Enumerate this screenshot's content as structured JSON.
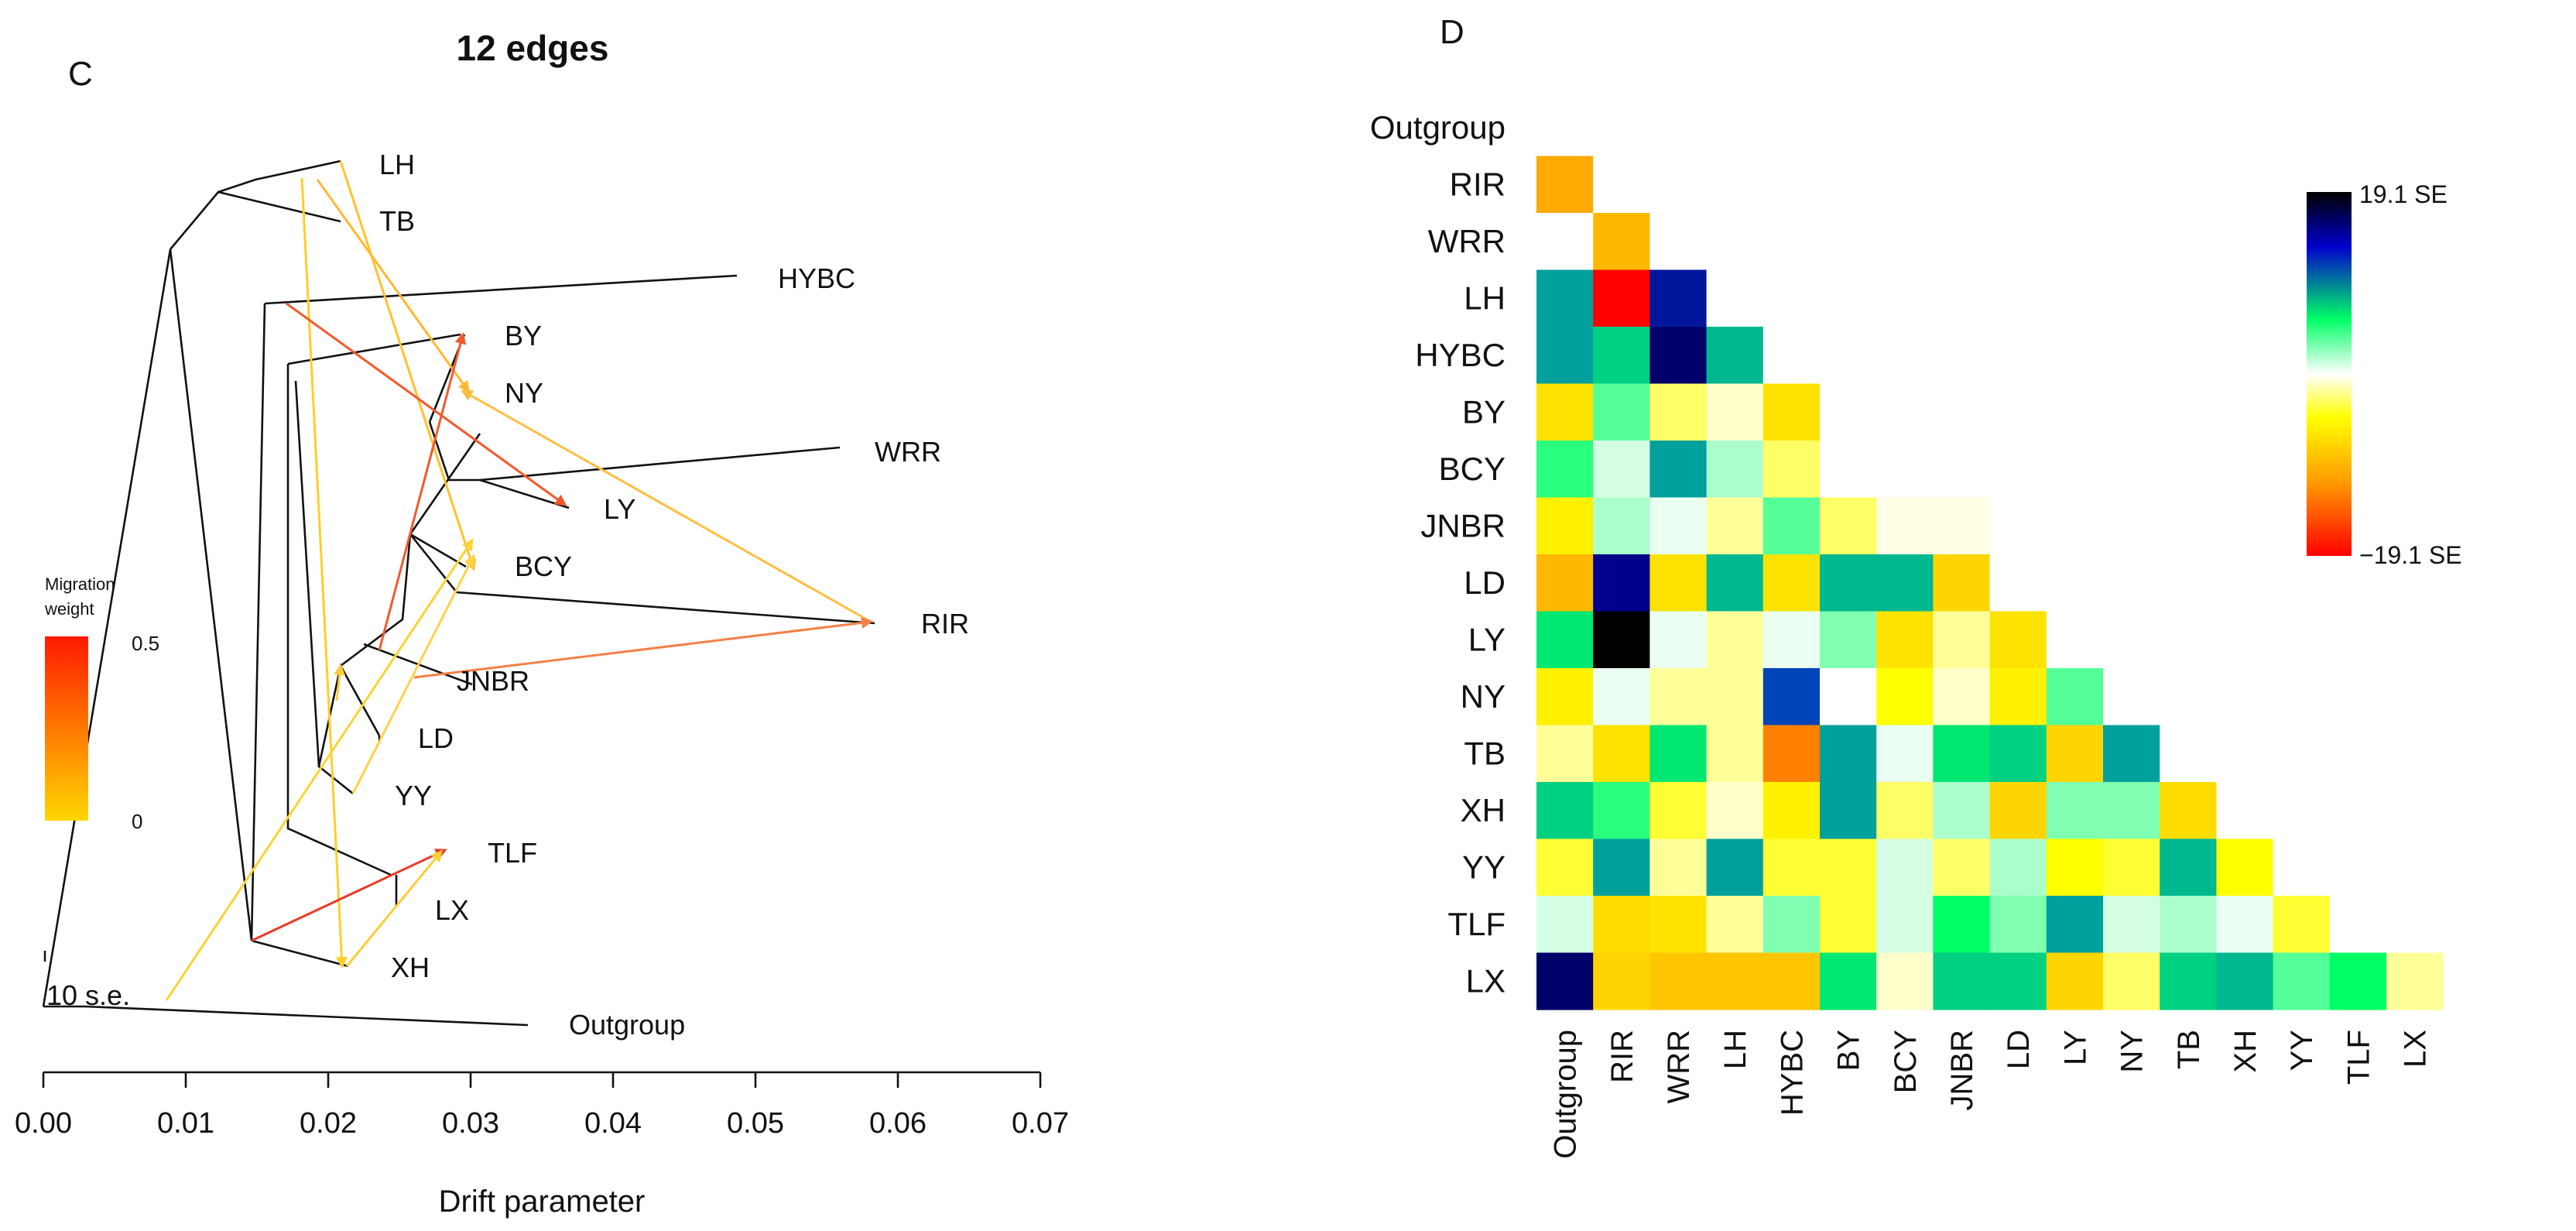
{
  "chart_data": [
    {
      "type": "diagram",
      "panel": "C",
      "title": "12 edges",
      "xlabel": "Drift parameter",
      "xlim": [
        0,
        0.07
      ],
      "xticks": [
        "0.00",
        "0.01",
        "0.02",
        "0.03",
        "0.04",
        "0.05",
        "0.06",
        "0.07"
      ],
      "legend": {
        "title_line1": "Migration",
        "title_line2": "weight",
        "max_label": "0.5",
        "min_label": "0",
        "colors": [
          "#ff1a00",
          "#ffd700"
        ]
      },
      "scale_label": "10 s.e.",
      "tips": [
        "LH",
        "TB",
        "HYBC",
        "BY",
        "NY",
        "WRR",
        "LY",
        "BCY",
        "RIR",
        "JNBR",
        "LD",
        "YY",
        "TLF",
        "LX",
        "XH",
        "Outgroup"
      ],
      "migration_edges": 12
    },
    {
      "type": "heatmap",
      "panel": "D",
      "labels": [
        "Outgroup",
        "RIR",
        "WRR",
        "LH",
        "HYBC",
        "BY",
        "BCY",
        "JNBR",
        "LD",
        "LY",
        "NY",
        "TB",
        "XH",
        "YY",
        "TLF",
        "LX"
      ],
      "value_unit": "SE",
      "range": [
        -19.1,
        19.1
      ],
      "colorbar": {
        "max_label": "19.1 SE",
        "min_label": "−19.1 SE",
        "colors": [
          "#ff0000",
          "#ff9900",
          "#ffff00",
          "#ffffff",
          "#00ff66",
          "#0000cc",
          "#000000"
        ]
      },
      "values": [
        [
          0
        ],
        [
          -11,
          0
        ],
        [
          0,
          -10,
          0
        ],
        [
          10,
          -19,
          16,
          0
        ],
        [
          10,
          8,
          17.5,
          9,
          0
        ],
        [
          -7,
          4,
          -3,
          -1,
          -7,
          0
        ],
        [
          5,
          1,
          10,
          2,
          -3,
          0,
          0
        ],
        [
          -6,
          2,
          0.5,
          -2,
          4,
          -3,
          -0.5,
          -0.5
        ],
        [
          -10,
          17,
          -7,
          9,
          -7,
          9,
          9,
          -8,
          0
        ],
        [
          7,
          19.1,
          0.5,
          -2,
          0.5,
          3,
          -7,
          -2,
          -7,
          0
        ],
        [
          -6,
          0.5,
          -2,
          -2,
          14,
          0,
          -5,
          -1,
          -6,
          4,
          0
        ],
        [
          -2,
          -7,
          7,
          -2,
          -13,
          10,
          0.5,
          7,
          8,
          -8,
          10,
          0
        ],
        [
          8,
          5,
          -4,
          -1,
          -6,
          10,
          -3,
          2,
          -8,
          3,
          3,
          -7.5,
          0
        ],
        [
          -4,
          10,
          -2,
          10,
          -4,
          -4,
          1,
          -3,
          2,
          -5,
          -4,
          9,
          -5,
          0
        ],
        [
          1,
          -7.5,
          -7,
          -2,
          3,
          -4,
          1,
          6,
          3,
          10,
          1,
          2,
          0.5,
          -4,
          0
        ],
        [
          17.5,
          -8,
          -9,
          -9,
          -9,
          7,
          -1,
          8,
          8,
          -8,
          -3,
          8,
          9,
          4,
          6,
          -2
        ]
      ]
    }
  ]
}
